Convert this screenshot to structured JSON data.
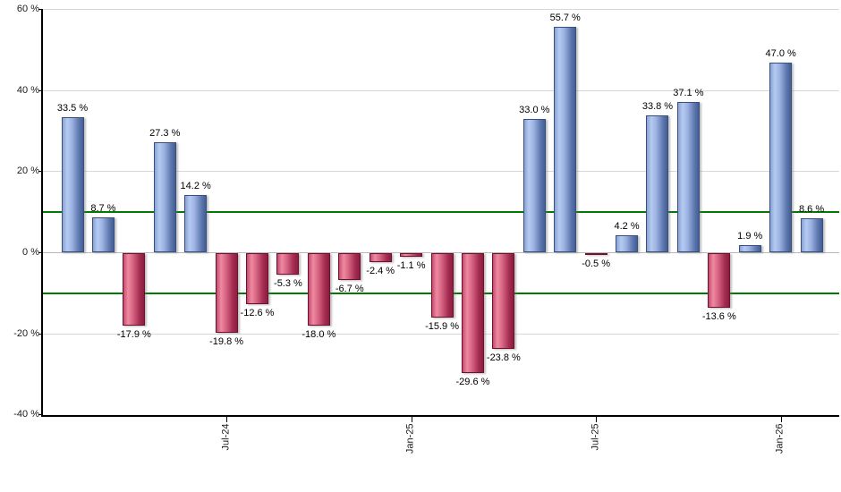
{
  "chart_data": {
    "type": "bar",
    "title": "",
    "xlabel": "",
    "ylabel": "",
    "unit": "%",
    "ylim": [
      -40,
      60
    ],
    "grid": true,
    "legend_position": "none",
    "y_ticks": [
      {
        "value": 60,
        "label": "60 %"
      },
      {
        "value": 40,
        "label": "40 %"
      },
      {
        "value": 20,
        "label": "20 %"
      },
      {
        "value": 0,
        "label": "0 %"
      },
      {
        "value": -20,
        "label": "-20 %"
      },
      {
        "value": -40,
        "label": "-40 %"
      }
    ],
    "threshold_lines": {
      "values": [
        10,
        -10
      ],
      "color": "#007a00"
    },
    "x_ticks": [
      {
        "index": 5,
        "label": "Jul-24"
      },
      {
        "index": 11,
        "label": "Jan-25"
      },
      {
        "index": 17,
        "label": "Jul-25"
      },
      {
        "index": 23,
        "label": "Jan-26"
      }
    ],
    "bars": [
      {
        "value": 33.5,
        "label": "33.5 %"
      },
      {
        "value": 8.7,
        "label": "8.7 %"
      },
      {
        "value": -17.9,
        "label": "-17.9 %"
      },
      {
        "value": 27.3,
        "label": "27.3 %"
      },
      {
        "value": 14.2,
        "label": "14.2 %"
      },
      {
        "value": -19.8,
        "label": "-19.8 %"
      },
      {
        "value": -12.6,
        "label": "-12.6 %"
      },
      {
        "value": -5.3,
        "label": "-5.3 %"
      },
      {
        "value": -18.0,
        "label": "-18.0 %"
      },
      {
        "value": -6.7,
        "label": "-6.7 %"
      },
      {
        "value": -2.4,
        "label": "-2.4 %"
      },
      {
        "value": -1.1,
        "label": "-1.1 %"
      },
      {
        "value": -15.9,
        "label": "-15.9 %"
      },
      {
        "value": -29.6,
        "label": "-29.6 %"
      },
      {
        "value": -23.8,
        "label": "-23.8 %"
      },
      {
        "value": 33.0,
        "label": "33.0 %"
      },
      {
        "value": 55.7,
        "label": "55.7 %"
      },
      {
        "value": -0.5,
        "label": "-0.5 %"
      },
      {
        "value": 4.2,
        "label": "4.2 %"
      },
      {
        "value": 33.8,
        "label": "33.8 %"
      },
      {
        "value": 37.1,
        "label": "37.1 %"
      },
      {
        "value": -13.6,
        "label": "-13.6 %"
      },
      {
        "value": 1.9,
        "label": "1.9 %"
      },
      {
        "value": 47.0,
        "label": "47.0 %"
      },
      {
        "value": 8.6,
        "label": "8.6 %"
      }
    ],
    "colors": {
      "positive_fill": "#9ab3e4",
      "negative_fill": "#cf5378",
      "grid": "#d8d8d8",
      "zero_line": "#b9b9b9",
      "axis": "#000000",
      "threshold": "#007a00",
      "label_text": "#000000"
    }
  }
}
